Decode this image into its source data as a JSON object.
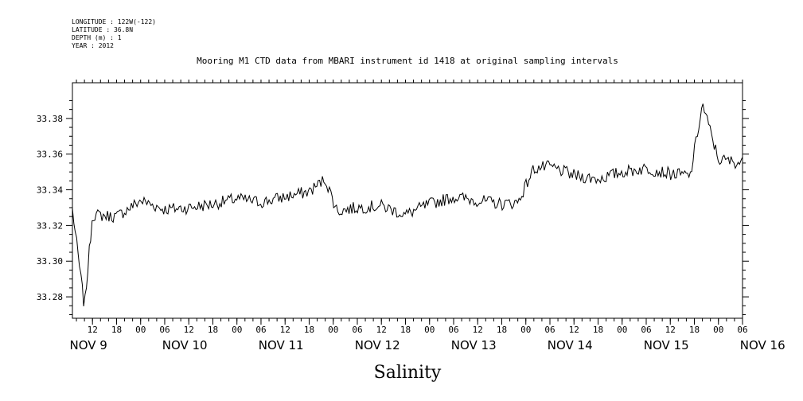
{
  "header": {
    "longitude": "LONGITUDE : 122W(-122)",
    "latitude": "LATITUDE : 36.8N",
    "depth": "DEPTH (m) : 1",
    "year": "YEAR : 2012"
  },
  "chart_data": {
    "type": "line",
    "title": "Mooring M1 CTD data from MBARI instrument id 1418 at original sampling intervals",
    "xlabel": "Salinity",
    "ylabel": "",
    "ylim": [
      33.268,
      33.4
    ],
    "xlim_hours_from_nov9_00": [
      7,
      174
    ],
    "yticks": [
      "33.28",
      "33.30",
      "33.32",
      "33.34",
      "33.36",
      "33.38"
    ],
    "yticks_values": [
      33.28,
      33.3,
      33.32,
      33.34,
      33.36,
      33.38
    ],
    "hour_tick_labels": [
      "12",
      "18",
      "00",
      "06",
      "12",
      "18",
      "00",
      "06",
      "12",
      "18",
      "00",
      "06",
      "12",
      "18",
      "00",
      "06",
      "12",
      "18",
      "00",
      "06",
      "12",
      "18",
      "00",
      "06",
      "12",
      "18",
      "00",
      "06"
    ],
    "day_labels": [
      "NOV  9",
      "NOV 10",
      "NOV 11",
      "NOV 12",
      "NOV 13",
      "NOV 14",
      "NOV 15",
      "NOV 16"
    ],
    "series": [
      {
        "x": [
          "2012-11-09 07:00",
          "2012-11-09 10:00",
          "2012-11-09 12:00",
          "2012-11-09 18:00",
          "2012-11-10 00:00",
          "2012-11-10 06:00",
          "2012-11-10 12:00",
          "2012-11-10 18:00",
          "2012-11-11 00:00",
          "2012-11-11 06:00",
          "2012-11-11 12:00",
          "2012-11-11 18:00",
          "2012-11-11 22:00",
          "2012-11-12 01:00",
          "2012-11-12 06:00",
          "2012-11-12 12:00",
          "2012-11-12 18:00",
          "2012-11-13 00:00",
          "2012-11-13 06:00",
          "2012-11-13 12:00",
          "2012-11-13 18:00",
          "2012-11-13 22:00",
          "2012-11-14 02:00",
          "2012-11-14 06:00",
          "2012-11-14 12:00",
          "2012-11-14 18:00",
          "2012-11-15 00:00",
          "2012-11-15 06:00",
          "2012-11-15 12:00",
          "2012-11-15 17:00",
          "2012-11-15 20:00",
          "2012-11-16 00:00",
          "2012-11-16 06:00"
        ],
        "values": [
          33.329,
          33.274,
          33.326,
          33.325,
          33.334,
          33.329,
          33.33,
          33.332,
          33.335,
          33.333,
          33.336,
          33.339,
          33.346,
          33.328,
          33.33,
          33.331,
          33.326,
          33.332,
          33.336,
          33.334,
          33.332,
          33.333,
          33.352,
          33.353,
          33.348,
          33.346,
          33.35,
          33.352,
          33.349,
          33.348,
          33.388,
          33.357,
          33.355
        ]
      }
    ]
  }
}
